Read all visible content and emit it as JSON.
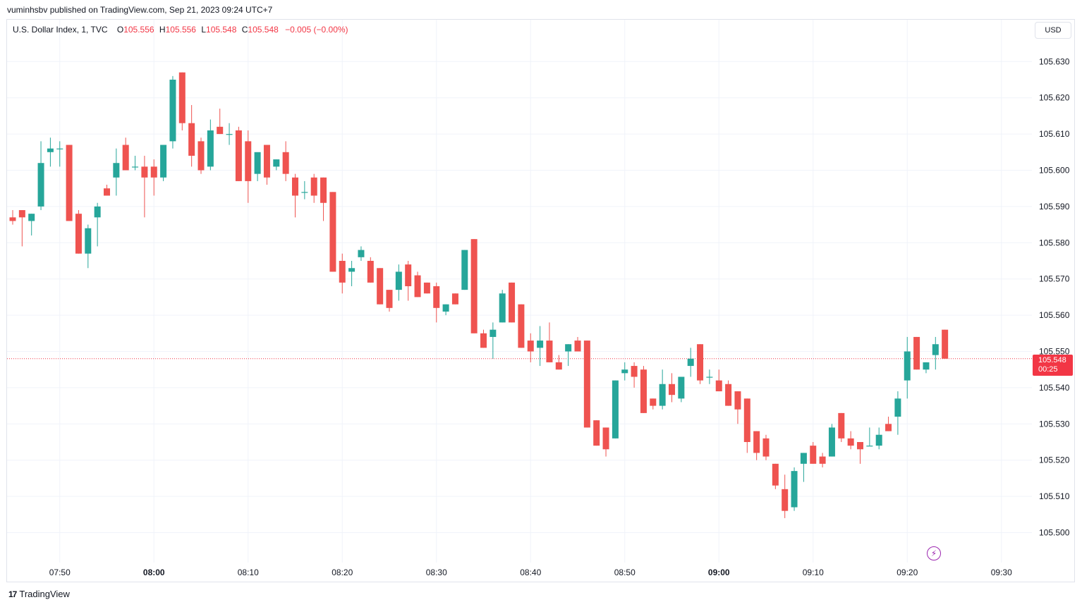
{
  "published_line": "vuminhsbv published on TradingView.com, Sep 21, 2023 09:24 UTC+7",
  "legend": {
    "symbol": "U.S. Dollar Index, 1, TVC",
    "o_label": "O",
    "o_value": "105.556",
    "h_label": "H",
    "h_value": "105.556",
    "l_label": "L",
    "l_value": "105.548",
    "c_label": "C",
    "c_value": "105.548",
    "change": "−0.005 (−0.00%)"
  },
  "currency_button": "USD",
  "last_price": {
    "value": "105.548",
    "countdown": "00:25"
  },
  "footer": {
    "logo": "17",
    "brand": "TradingView"
  },
  "icons": {
    "bolt": "lightning-bolt-icon",
    "logo": "tradingview-logo-icon"
  },
  "colors": {
    "up": "#26a69a",
    "down": "#ef5350",
    "grid": "#f0f3fa",
    "last_line": "#f23645"
  },
  "chart_data": {
    "type": "candlestick",
    "title": "U.S. Dollar Index, 1, TVC",
    "interval_minutes": 1,
    "start_time": "07:45",
    "ylim": [
      105.4945,
      105.6365
    ],
    "y_ticks": [
      "105.500",
      "105.510",
      "105.520",
      "105.530",
      "105.540",
      "105.550",
      "105.560",
      "105.570",
      "105.580",
      "105.590",
      "105.600",
      "105.610",
      "105.620",
      "105.630"
    ],
    "x_ticks": [
      {
        "t": "07:50",
        "bold": false
      },
      {
        "t": "08:00",
        "bold": true
      },
      {
        "t": "08:10",
        "bold": false
      },
      {
        "t": "08:20",
        "bold": false
      },
      {
        "t": "08:30",
        "bold": false
      },
      {
        "t": "08:40",
        "bold": false
      },
      {
        "t": "08:50",
        "bold": false
      },
      {
        "t": "09:00",
        "bold": true
      },
      {
        "t": "09:10",
        "bold": false
      },
      {
        "t": "09:20",
        "bold": false
      },
      {
        "t": "09:30",
        "bold": false
      }
    ],
    "last_price": 105.548,
    "candles": [
      {
        "o": 105.587,
        "h": 105.589,
        "l": 105.585,
        "c": 105.586
      },
      {
        "o": 105.589,
        "h": 105.589,
        "l": 105.579,
        "c": 105.587
      },
      {
        "o": 105.586,
        "h": 105.588,
        "l": 105.582,
        "c": 105.588
      },
      {
        "o": 105.59,
        "h": 105.608,
        "l": 105.589,
        "c": 105.602
      },
      {
        "o": 105.605,
        "h": 105.609,
        "l": 105.601,
        "c": 105.606
      },
      {
        "o": 105.606,
        "h": 105.608,
        "l": 105.601,
        "c": 105.606
      },
      {
        "o": 105.607,
        "h": 105.607,
        "l": 105.586,
        "c": 105.586
      },
      {
        "o": 105.588,
        "h": 105.589,
        "l": 105.577,
        "c": 105.577
      },
      {
        "o": 105.577,
        "h": 105.585,
        "l": 105.573,
        "c": 105.584
      },
      {
        "o": 105.587,
        "h": 105.591,
        "l": 105.579,
        "c": 105.59
      },
      {
        "o": 105.595,
        "h": 105.596,
        "l": 105.593,
        "c": 105.593
      },
      {
        "o": 105.598,
        "h": 105.606,
        "l": 105.593,
        "c": 105.602
      },
      {
        "o": 105.607,
        "h": 105.609,
        "l": 105.6,
        "c": 105.6
      },
      {
        "o": 105.601,
        "h": 105.604,
        "l": 105.6,
        "c": 105.601
      },
      {
        "o": 105.601,
        "h": 105.604,
        "l": 105.587,
        "c": 105.598
      },
      {
        "o": 105.601,
        "h": 105.603,
        "l": 105.593,
        "c": 105.598
      },
      {
        "o": 105.598,
        "h": 105.607,
        "l": 105.597,
        "c": 105.607
      },
      {
        "o": 105.608,
        "h": 105.626,
        "l": 105.606,
        "c": 105.625
      },
      {
        "o": 105.627,
        "h": 105.627,
        "l": 105.611,
        "c": 105.613
      },
      {
        "o": 105.613,
        "h": 105.618,
        "l": 105.601,
        "c": 105.604
      },
      {
        "o": 105.608,
        "h": 105.609,
        "l": 105.599,
        "c": 105.6
      },
      {
        "o": 105.601,
        "h": 105.614,
        "l": 105.6,
        "c": 105.611
      },
      {
        "o": 105.612,
        "h": 105.617,
        "l": 105.61,
        "c": 105.61
      },
      {
        "o": 105.61,
        "h": 105.613,
        "l": 105.607,
        "c": 105.61
      },
      {
        "o": 105.611,
        "h": 105.612,
        "l": 105.597,
        "c": 105.597
      },
      {
        "o": 105.608,
        "h": 105.611,
        "l": 105.591,
        "c": 105.597
      },
      {
        "o": 105.599,
        "h": 105.604,
        "l": 105.597,
        "c": 105.605
      },
      {
        "o": 105.607,
        "h": 105.607,
        "l": 105.596,
        "c": 105.598
      },
      {
        "o": 105.601,
        "h": 105.603,
        "l": 105.6,
        "c": 105.603
      },
      {
        "o": 105.605,
        "h": 105.608,
        "l": 105.597,
        "c": 105.599
      },
      {
        "o": 105.598,
        "h": 105.599,
        "l": 105.587,
        "c": 105.593
      },
      {
        "o": 105.594,
        "h": 105.597,
        "l": 105.592,
        "c": 105.594
      },
      {
        "o": 105.598,
        "h": 105.599,
        "l": 105.591,
        "c": 105.593
      },
      {
        "o": 105.598,
        "h": 105.598,
        "l": 105.586,
        "c": 105.591
      },
      {
        "o": 105.594,
        "h": 105.594,
        "l": 105.572,
        "c": 105.572
      },
      {
        "o": 105.575,
        "h": 105.577,
        "l": 105.566,
        "c": 105.569
      },
      {
        "o": 105.572,
        "h": 105.575,
        "l": 105.568,
        "c": 105.573
      },
      {
        "o": 105.576,
        "h": 105.579,
        "l": 105.575,
        "c": 105.578
      },
      {
        "o": 105.575,
        "h": 105.576,
        "l": 105.569,
        "c": 105.569
      },
      {
        "o": 105.573,
        "h": 105.573,
        "l": 105.563,
        "c": 105.563
      },
      {
        "o": 105.567,
        "h": 105.567,
        "l": 105.561,
        "c": 105.562
      },
      {
        "o": 105.567,
        "h": 105.574,
        "l": 105.564,
        "c": 105.572
      },
      {
        "o": 105.574,
        "h": 105.575,
        "l": 105.564,
        "c": 105.568
      },
      {
        "o": 105.571,
        "h": 105.572,
        "l": 105.565,
        "c": 105.565
      },
      {
        "o": 105.569,
        "h": 105.569,
        "l": 105.566,
        "c": 105.566
      },
      {
        "o": 105.568,
        "h": 105.569,
        "l": 105.558,
        "c": 105.562
      },
      {
        "o": 105.561,
        "h": 105.563,
        "l": 105.56,
        "c": 105.563
      },
      {
        "o": 105.566,
        "h": 105.566,
        "l": 105.563,
        "c": 105.563
      },
      {
        "o": 105.567,
        "h": 105.578,
        "l": 105.567,
        "c": 105.578
      },
      {
        "o": 105.581,
        "h": 105.581,
        "l": 105.555,
        "c": 105.555
      },
      {
        "o": 105.555,
        "h": 105.556,
        "l": 105.551,
        "c": 105.551
      },
      {
        "o": 105.554,
        "h": 105.558,
        "l": 105.548,
        "c": 105.556
      },
      {
        "o": 105.558,
        "h": 105.567,
        "l": 105.558,
        "c": 105.566
      },
      {
        "o": 105.569,
        "h": 105.569,
        "l": 105.558,
        "c": 105.558
      },
      {
        "o": 105.563,
        "h": 105.563,
        "l": 105.551,
        "c": 105.551
      },
      {
        "o": 105.553,
        "h": 105.555,
        "l": 105.547,
        "c": 105.55
      },
      {
        "o": 105.551,
        "h": 105.557,
        "l": 105.546,
        "c": 105.553
      },
      {
        "o": 105.553,
        "h": 105.558,
        "l": 105.547,
        "c": 105.547
      },
      {
        "o": 105.547,
        "h": 105.549,
        "l": 105.545,
        "c": 105.545
      },
      {
        "o": 105.55,
        "h": 105.552,
        "l": 105.546,
        "c": 105.552
      },
      {
        "o": 105.553,
        "h": 105.554,
        "l": 105.55,
        "c": 105.55
      },
      {
        "o": 105.553,
        "h": 105.553,
        "l": 105.529,
        "c": 105.529
      },
      {
        "o": 105.531,
        "h": 105.531,
        "l": 105.524,
        "c": 105.524
      },
      {
        "o": 105.529,
        "h": 105.529,
        "l": 105.521,
        "c": 105.523
      },
      {
        "o": 105.526,
        "h": 105.542,
        "l": 105.526,
        "c": 105.542
      },
      {
        "o": 105.544,
        "h": 105.547,
        "l": 105.542,
        "c": 105.545
      },
      {
        "o": 105.546,
        "h": 105.547,
        "l": 105.54,
        "c": 105.543
      },
      {
        "o": 105.545,
        "h": 105.546,
        "l": 105.533,
        "c": 105.533
      },
      {
        "o": 105.537,
        "h": 105.537,
        "l": 105.534,
        "c": 105.535
      },
      {
        "o": 105.535,
        "h": 105.545,
        "l": 105.534,
        "c": 105.541
      },
      {
        "o": 105.541,
        "h": 105.544,
        "l": 105.536,
        "c": 105.538
      },
      {
        "o": 105.537,
        "h": 105.543,
        "l": 105.536,
        "c": 105.543
      },
      {
        "o": 105.546,
        "h": 105.551,
        "l": 105.543,
        "c": 105.548
      },
      {
        "o": 105.552,
        "h": 105.552,
        "l": 105.541,
        "c": 105.542
      },
      {
        "o": 105.543,
        "h": 105.545,
        "l": 105.541,
        "c": 105.543
      },
      {
        "o": 105.542,
        "h": 105.545,
        "l": 105.539,
        "c": 105.539
      },
      {
        "o": 105.541,
        "h": 105.542,
        "l": 105.535,
        "c": 105.535
      },
      {
        "o": 105.539,
        "h": 105.539,
        "l": 105.53,
        "c": 105.534
      },
      {
        "o": 105.537,
        "h": 105.537,
        "l": 105.522,
        "c": 105.525
      },
      {
        "o": 105.528,
        "h": 105.528,
        "l": 105.52,
        "c": 105.522
      },
      {
        "o": 105.526,
        "h": 105.527,
        "l": 105.52,
        "c": 105.521
      },
      {
        "o": 105.519,
        "h": 105.519,
        "l": 105.512,
        "c": 105.513
      },
      {
        "o": 105.512,
        "h": 105.516,
        "l": 105.504,
        "c": 105.506
      },
      {
        "o": 105.507,
        "h": 105.518,
        "l": 105.506,
        "c": 105.517
      },
      {
        "o": 105.519,
        "h": 105.522,
        "l": 105.514,
        "c": 105.522
      },
      {
        "o": 105.524,
        "h": 105.525,
        "l": 105.519,
        "c": 105.519
      },
      {
        "o": 105.521,
        "h": 105.522,
        "l": 105.518,
        "c": 105.519
      },
      {
        "o": 105.521,
        "h": 105.53,
        "l": 105.521,
        "c": 105.529
      },
      {
        "o": 105.533,
        "h": 105.533,
        "l": 105.525,
        "c": 105.526
      },
      {
        "o": 105.526,
        "h": 105.528,
        "l": 105.523,
        "c": 105.524
      },
      {
        "o": 105.525,
        "h": 105.525,
        "l": 105.519,
        "c": 105.523
      },
      {
        "o": 105.524,
        "h": 105.529,
        "l": 105.524,
        "c": 105.524
      },
      {
        "o": 105.524,
        "h": 105.529,
        "l": 105.523,
        "c": 105.527
      },
      {
        "o": 105.53,
        "h": 105.532,
        "l": 105.528,
        "c": 105.528
      },
      {
        "o": 105.532,
        "h": 105.539,
        "l": 105.527,
        "c": 105.537
      },
      {
        "o": 105.542,
        "h": 105.554,
        "l": 105.537,
        "c": 105.55
      },
      {
        "o": 105.554,
        "h": 105.554,
        "l": 105.545,
        "c": 105.545
      },
      {
        "o": 105.545,
        "h": 105.547,
        "l": 105.544,
        "c": 105.547
      },
      {
        "o": 105.549,
        "h": 105.554,
        "l": 105.545,
        "c": 105.552
      },
      {
        "o": 105.556,
        "h": 105.556,
        "l": 105.548,
        "c": 105.548
      }
    ]
  }
}
